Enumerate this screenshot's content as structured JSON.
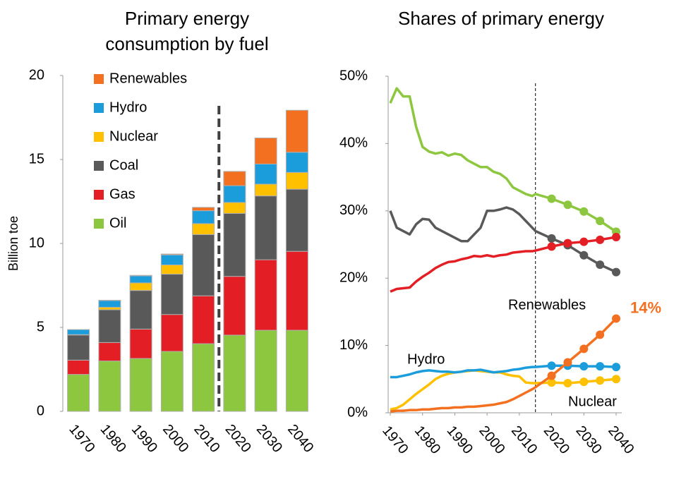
{
  "chart_data": [
    {
      "type": "bar",
      "stacked": true,
      "title": "Primary energy consumption by fuel",
      "ylabel": "Billion toe",
      "categories": [
        "1970",
        "1980",
        "1990",
        "2000",
        "2010",
        "2020",
        "2030",
        "2040"
      ],
      "series": [
        {
          "name": "Oil",
          "color": "#8dc63f",
          "values": [
            2.2,
            3.0,
            3.15,
            3.57,
            4.03,
            4.54,
            4.83,
            4.83
          ]
        },
        {
          "name": "Gas",
          "color": "#e31e24",
          "values": [
            0.85,
            1.1,
            1.75,
            2.2,
            2.85,
            3.5,
            4.2,
            4.7
          ]
        },
        {
          "name": "Coal",
          "color": "#595959",
          "values": [
            1.5,
            1.95,
            2.3,
            2.4,
            3.65,
            3.75,
            3.8,
            3.7
          ]
        },
        {
          "name": "Nuclear",
          "color": "#ffc000",
          "values": [
            0.02,
            0.15,
            0.45,
            0.55,
            0.65,
            0.65,
            0.7,
            1.0
          ]
        },
        {
          "name": "Hydro",
          "color": "#1b9ddb",
          "values": [
            0.3,
            0.4,
            0.42,
            0.6,
            0.77,
            1.0,
            1.2,
            1.2
          ]
        },
        {
          "name": "Renewables",
          "color": "#f37021",
          "values": [
            0,
            0.02,
            0.03,
            0.05,
            0.2,
            0.85,
            1.55,
            2.5
          ]
        }
      ],
      "ylim": [
        0,
        20
      ],
      "yticks": [
        0,
        5,
        10,
        15,
        20
      ],
      "grid": false,
      "legend": "top-left"
    },
    {
      "type": "line",
      "title": "Shares of primary energy",
      "x": [
        1970,
        1972,
        1974,
        1976,
        1978,
        1980,
        1982,
        1984,
        1986,
        1988,
        1990,
        1992,
        1994,
        1996,
        1998,
        2000,
        2002,
        2004,
        2006,
        2008,
        2010,
        2012,
        2014,
        2015,
        2020,
        2025,
        2030,
        2035,
        2040
      ],
      "series": [
        {
          "color": "#8dc63f",
          "values": [
            46,
            48.2,
            47,
            47,
            42.5,
            39.5,
            38.8,
            38.5,
            38.7,
            38.2,
            38.5,
            38.3,
            37.5,
            37,
            36.5,
            36.5,
            35.8,
            35.5,
            34.8,
            33.5,
            33,
            32.5,
            32.2,
            32.5,
            31.8,
            30.9,
            29.9,
            28.5,
            26.9
          ]
        },
        {
          "color": "#595959",
          "values": [
            30,
            27.5,
            27,
            26.5,
            28,
            28.8,
            28.7,
            27.5,
            27,
            26.5,
            26,
            25.5,
            25.5,
            26.5,
            27.5,
            30,
            30,
            30.2,
            30.5,
            30.2,
            29.5,
            28.5,
            27.5,
            27,
            25.9,
            24.9,
            23.4,
            22.0,
            20.9
          ]
        },
        {
          "color": "#e31e24",
          "values": [
            18,
            18.4,
            18.5,
            18.6,
            19.5,
            20.2,
            20.8,
            21.5,
            22,
            22.4,
            22.5,
            22.8,
            23,
            23.3,
            23.2,
            23.4,
            23.2,
            23.4,
            23.5,
            23.8,
            23.9,
            24,
            24,
            24.1,
            24.7,
            25.2,
            25.4,
            25.7,
            26.1
          ]
        },
        {
          "name": "Nuclear",
          "color": "#ffc000",
          "values": [
            0.5,
            0.7,
            1.2,
            2,
            2.8,
            3.5,
            4.2,
            5,
            5.5,
            5.8,
            6,
            6.1,
            6.2,
            6.3,
            6.2,
            6.1,
            6,
            6,
            5.7,
            5.5,
            5.4,
            4.5,
            4.4,
            4.4,
            4.5,
            4.4,
            4.6,
            4.8,
            5.0
          ]
        },
        {
          "name": "Hydro",
          "color": "#1b9ddb",
          "values": [
            5.3,
            5.3,
            5.5,
            5.7,
            6,
            6.2,
            6.3,
            6.2,
            6.1,
            6.1,
            6,
            6.1,
            6.3,
            6.3,
            6.4,
            6.2,
            6,
            6.1,
            6.2,
            6.4,
            6.5,
            6.7,
            6.8,
            6.8,
            7.0,
            7.0,
            6.9,
            6.9,
            6.8
          ]
        },
        {
          "name": "Renewables",
          "color": "#f37021",
          "values": [
            0.2,
            0.3,
            0.3,
            0.4,
            0.4,
            0.5,
            0.5,
            0.6,
            0.7,
            0.7,
            0.8,
            0.8,
            0.9,
            0.9,
            1.0,
            1.1,
            1.2,
            1.4,
            1.6,
            2.0,
            2.5,
            3.0,
            3.5,
            3.8,
            5.5,
            7.5,
            9.5,
            11.6,
            14
          ],
          "value_labels": [
            null,
            null,
            null,
            null,
            null,
            null,
            null,
            null,
            null,
            null,
            null,
            null,
            null,
            null,
            null,
            null,
            null,
            null,
            null,
            null,
            null,
            null,
            null,
            null,
            null,
            null,
            null,
            null,
            "14%"
          ]
        }
      ],
      "xlim": [
        1970,
        2040
      ],
      "xticks": [
        1970,
        1980,
        1990,
        2000,
        2010,
        2020,
        2030,
        2040
      ],
      "ylim": [
        0,
        50
      ],
      "yticks": [
        {
          "value": 0,
          "label": "0%"
        },
        {
          "value": 10,
          "label": "10%"
        },
        {
          "value": 20,
          "label": "20%"
        },
        {
          "value": 30,
          "label": "30%"
        },
        {
          "value": 40,
          "label": "40%"
        },
        {
          "value": 50,
          "label": "50%"
        }
      ],
      "grid": false,
      "projection_x": 2015
    }
  ]
}
